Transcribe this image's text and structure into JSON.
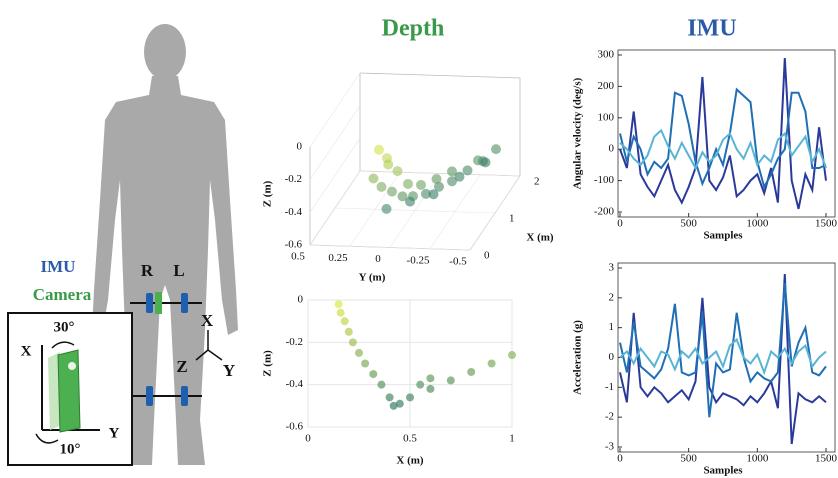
{
  "titles": {
    "depth": "Depth",
    "imu": "IMU"
  },
  "diagram": {
    "imu_label": "IMU",
    "camera_label": "Camera",
    "right": "R",
    "left": "L",
    "axes": {
      "x": "X",
      "y": "Y",
      "z": "Z"
    },
    "inset": {
      "x": "X",
      "y": "Y",
      "pitch": "30°",
      "roll": "10°"
    }
  },
  "chart_data": [
    {
      "type": "scatter3d",
      "xlabel": "X (m)",
      "ylabel": "Y (m)",
      "zlabel": "Z (m)",
      "xlim": [
        0,
        2
      ],
      "xticks": [
        0,
        1,
        2
      ],
      "ylim": [
        0.5,
        -0.5
      ],
      "yticks": [
        0.5,
        0.25,
        0,
        -0.25,
        -0.5
      ],
      "zlim": [
        -0.6,
        0
      ],
      "zticks": [
        0,
        -0.2,
        -0.4,
        -0.6
      ],
      "colormap": [
        "#1b6b6e",
        "#e3ec4a"
      ],
      "x": [
        0.3,
        0.4,
        0.5,
        0.6,
        0.8,
        1.0,
        1.2,
        1.5,
        1.8,
        0.2,
        0.3,
        0.4,
        0.6,
        0.9,
        1.2,
        1.6,
        2.0,
        0.2,
        0.25,
        0.3,
        0.5,
        0.8,
        1.1,
        1.5,
        1.9
      ],
      "y": [
        0.1,
        0.05,
        0.0,
        -0.05,
        -0.1,
        -0.15,
        -0.2,
        -0.25,
        -0.3,
        0.05,
        0.0,
        -0.05,
        -0.1,
        -0.15,
        -0.2,
        -0.3,
        -0.35,
        0.1,
        0.05,
        0.15,
        0.1,
        0.0,
        -0.1,
        -0.2,
        -0.3
      ],
      "z": [
        -0.3,
        -0.35,
        -0.4,
        -0.42,
        -0.45,
        -0.45,
        -0.46,
        -0.46,
        -0.47,
        -0.1,
        -0.2,
        -0.3,
        -0.35,
        -0.38,
        -0.4,
        -0.42,
        -0.44,
        -0.05,
        -0.15,
        -0.25,
        -0.48,
        -0.5,
        -0.52,
        -0.5,
        -0.5
      ]
    },
    {
      "type": "scatter",
      "xlabel": "X (m)",
      "ylabel": "Z (m)",
      "grid": true,
      "xlim": [
        0,
        1
      ],
      "xticks": [
        0,
        0.5,
        1
      ],
      "ylim": [
        -0.6,
        0
      ],
      "yticks": [
        0,
        -0.2,
        -0.4,
        -0.6
      ],
      "colormap": [
        "#1b6b6e",
        "#e3ec4a"
      ],
      "x": [
        0.15,
        0.16,
        0.18,
        0.2,
        0.22,
        0.25,
        0.28,
        0.32,
        0.36,
        0.4,
        0.42,
        0.45,
        0.5,
        0.6,
        0.7,
        0.8,
        0.9,
        1.0,
        0.55,
        0.6
      ],
      "values": [
        -0.02,
        -0.06,
        -0.1,
        -0.15,
        -0.2,
        -0.25,
        -0.3,
        -0.35,
        -0.4,
        -0.46,
        -0.5,
        -0.49,
        -0.46,
        -0.42,
        -0.38,
        -0.34,
        -0.3,
        -0.26,
        -0.4,
        -0.37
      ]
    },
    {
      "type": "line",
      "xlabel": "Samples",
      "ylabel": "Angular velocity (deg/s)",
      "xlim": [
        0,
        1500
      ],
      "xticks": [
        0,
        500,
        1000,
        1500
      ],
      "ylim": [
        -200,
        300
      ],
      "yticks": [
        -200,
        -100,
        0,
        100,
        200,
        300
      ],
      "x": [
        0,
        50,
        100,
        150,
        200,
        250,
        300,
        350,
        400,
        450,
        500,
        550,
        600,
        650,
        700,
        750,
        800,
        850,
        900,
        950,
        1000,
        1050,
        1100,
        1150,
        1200,
        1250,
        1300,
        1350,
        1400,
        1450,
        1500
      ],
      "series": [
        {
          "color": "#2b3a9a",
          "values": [
            0,
            -60,
            120,
            -80,
            -120,
            -150,
            -100,
            -50,
            -130,
            -170,
            -120,
            -60,
            230,
            -100,
            -130,
            -90,
            -20,
            -150,
            -130,
            -100,
            -80,
            -140,
            -60,
            -170,
            290,
            -100,
            -190,
            -80,
            -130,
            70,
            -100
          ]
        },
        {
          "color": "#1f6fb5",
          "values": [
            50,
            -40,
            40,
            0,
            -80,
            -40,
            -60,
            -30,
            180,
            170,
            80,
            -40,
            -110,
            -60,
            0,
            -50,
            50,
            190,
            170,
            150,
            -40,
            -120,
            -80,
            -30,
            0,
            180,
            180,
            120,
            -60,
            -60,
            -50
          ]
        },
        {
          "color": "#5ab4d6",
          "values": [
            20,
            0,
            -30,
            -50,
            -20,
            40,
            60,
            10,
            -30,
            20,
            -20,
            -60,
            -10,
            -40,
            -20,
            30,
            50,
            0,
            -30,
            20,
            -50,
            -20,
            -40,
            30,
            50,
            -20,
            10,
            40,
            -40,
            0,
            -60
          ]
        }
      ]
    },
    {
      "type": "line",
      "xlabel": "Samples",
      "ylabel": "Acceleration (g)",
      "xlim": [
        0,
        1500
      ],
      "xticks": [
        0,
        500,
        1000,
        1500
      ],
      "ylim": [
        -3,
        3
      ],
      "yticks": [
        -3,
        -2,
        -1,
        0,
        1,
        2,
        3
      ],
      "x": [
        0,
        50,
        100,
        150,
        200,
        250,
        300,
        350,
        400,
        450,
        500,
        550,
        600,
        650,
        700,
        750,
        800,
        850,
        900,
        950,
        1000,
        1050,
        1100,
        1150,
        1200,
        1250,
        1300,
        1350,
        1400,
        1450,
        1500
      ],
      "series": [
        {
          "color": "#2b3a9a",
          "values": [
            -0.5,
            -1.5,
            1.5,
            -1,
            -1.3,
            -1,
            -1.2,
            -1.5,
            -1.3,
            -1.1,
            -1.4,
            -0.8,
            2,
            -1,
            -1.5,
            -1.2,
            -1.3,
            -1.4,
            -1.6,
            -1.3,
            -1.5,
            -1.2,
            -0.8,
            -1.7,
            2.8,
            -2.9,
            -1.2,
            -1.4,
            -1.5,
            -1.3,
            -1.5
          ]
        },
        {
          "color": "#1f6fb5",
          "values": [
            0.5,
            -0.5,
            1.2,
            -0.3,
            -0.5,
            -0.7,
            -0.4,
            0.3,
            1.8,
            -0.5,
            -0.6,
            -0.5,
            1.5,
            -2,
            -0.2,
            -0.5,
            -0.4,
            1.5,
            0,
            -0.8,
            -0.5,
            -0.7,
            -0.8,
            -0.5,
            2.5,
            -0.3,
            0.5,
            1,
            -0.5,
            -0.6,
            -0.3
          ]
        },
        {
          "color": "#5ab4d6",
          "values": [
            0,
            0.2,
            -0.2,
            0.3,
            0,
            -0.3,
            0.2,
            0.1,
            -0.4,
            0.2,
            0,
            0.3,
            -0.2,
            0,
            0.2,
            -0.3,
            0.4,
            0.6,
            0,
            -0.2,
            0.1,
            -0.5,
            0.2,
            0,
            0.3,
            -0.2,
            0.2,
            0.4,
            -0.3,
            0,
            0.2
          ]
        }
      ]
    }
  ]
}
